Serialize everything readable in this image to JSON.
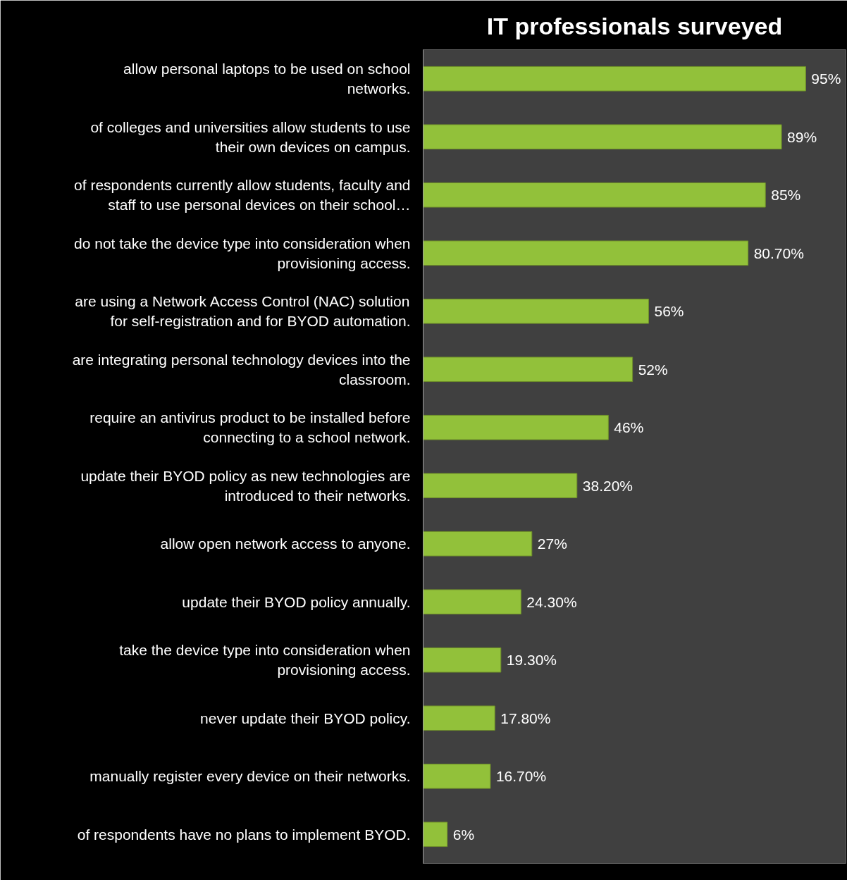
{
  "chart_data": {
    "type": "bar",
    "orientation": "horizontal",
    "title": "IT professionals surveyed",
    "categories": [
      "allow personal laptops to be used on school networks.",
      "of colleges and universities allow students to use their own devices on campus.",
      "of respondents currently allow students, faculty and staff to use personal devices on their school…",
      "do not take the device type into consideration when provisioning access.",
      "are using a Network Access Control (NAC) solution for self-registration and for BYOD automation.",
      "are integrating personal technology devices into the classroom.",
      "require an antivirus product to be installed before connecting to a school network.",
      "update their BYOD policy as new technologies are introduced to their networks.",
      "allow open network access to anyone.",
      "update their BYOD policy annually.",
      "take the device type into consideration when provisioning access.",
      "never update their BYOD policy.",
      "manually register every device on their networks.",
      "of respondents have no plans to implement BYOD."
    ],
    "values": [
      95,
      89,
      85,
      80.7,
      56,
      52,
      46,
      38.2,
      27,
      24.3,
      19.3,
      17.8,
      16.7,
      6
    ],
    "value_labels": [
      "95%",
      "89%",
      "85%",
      "80.70%",
      "56%",
      "52%",
      "46%",
      "38.20%",
      "27%",
      "24.30%",
      "19.30%",
      "17.80%",
      "16.70%",
      "6%"
    ],
    "color": "#92c13a",
    "xlim": [
      0,
      105
    ],
    "tick_labels": "y"
  }
}
